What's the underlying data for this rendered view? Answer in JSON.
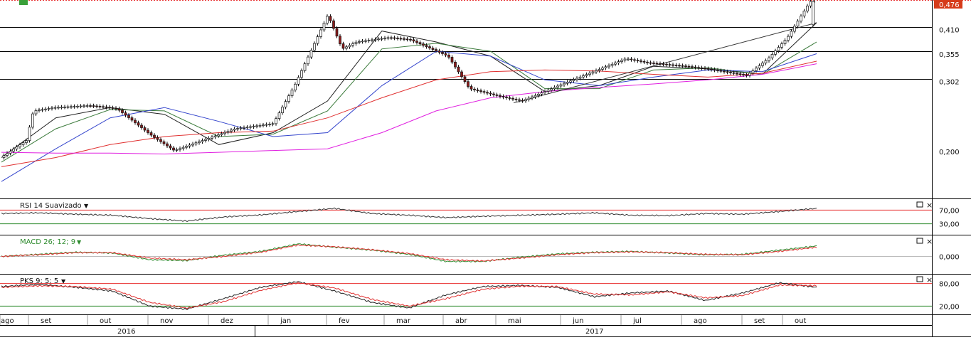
{
  "colors": {
    "up_body": "#ffffff",
    "down_body": "#8b1a1a",
    "candle_outline": "#111111",
    "grid": "#000000",
    "red_ref": "#e83030",
    "green_ref": "#2e8b2e",
    "ma_fast": "#222222",
    "ma_slow": "#3a7a3a",
    "ma_blue": "#3344cc",
    "ma_red": "#e03030",
    "ma_magenta": "#e020e0",
    "last_price_bg": "#d63b1a"
  },
  "price_panel": {
    "levels": [
      "0,476",
      "0,410",
      "0,355",
      "0,302",
      "0,200"
    ],
    "highlight_level": "0,476"
  },
  "rsi_panel": {
    "title": "RSI 14 Suavizado",
    "levels": [
      "70,00",
      "30,00"
    ]
  },
  "macd_panel": {
    "title": "MACD 26; 12; 9",
    "levels": [
      "0,000"
    ]
  },
  "pks_panel": {
    "title": "PKS 9; 5; 5",
    "levels": [
      "80,00",
      "20,00"
    ]
  },
  "panel_icons": [
    "maximize-icon",
    "close-icon"
  ],
  "time_axis": {
    "months": [
      "ago",
      "set",
      "out",
      "nov",
      "dez",
      "jan",
      "fev",
      "mar",
      "abr",
      "mai",
      "jun",
      "jul",
      "ago",
      "set",
      "out"
    ],
    "years": [
      "2016",
      "2017"
    ]
  },
  "chart_data": {
    "type": "candlestick",
    "log_scale": true,
    "ylim": [
      0.15,
      0.476
    ],
    "horizontal_lines": [
      0.41,
      0.355,
      0.302
    ],
    "x": [
      "ago",
      "set",
      "out",
      "nov",
      "dez",
      "jan",
      "fev",
      "mar",
      "abr",
      "mai",
      "jun",
      "jul",
      "ago",
      "set",
      "out"
    ],
    "close_path": [
      [
        "ago",
        0.19
      ],
      [
        "ago",
        0.21
      ],
      [
        "set",
        0.25
      ],
      [
        "set",
        0.255
      ],
      [
        "out",
        0.258
      ],
      [
        "out",
        0.256
      ],
      [
        "out",
        0.253
      ],
      [
        "nov",
        0.215
      ],
      [
        "nov",
        0.198
      ],
      [
        "dez",
        0.215
      ],
      [
        "dez",
        0.225
      ],
      [
        "jan",
        0.232
      ],
      [
        "jan",
        0.29
      ],
      [
        "fev",
        0.44
      ],
      [
        "fev",
        0.36
      ],
      [
        "fev",
        0.375
      ],
      [
        "mar",
        0.385
      ],
      [
        "mar",
        0.38
      ],
      [
        "abr",
        0.345
      ],
      [
        "abr",
        0.285
      ],
      [
        "mai",
        0.272
      ],
      [
        "mai",
        0.265
      ],
      [
        "jun",
        0.295
      ],
      [
        "jun",
        0.31
      ],
      [
        "jul",
        0.34
      ],
      [
        "jul",
        0.332
      ],
      [
        "ago",
        0.325
      ],
      [
        "ago",
        0.32
      ],
      [
        "set",
        0.308
      ],
      [
        "set",
        0.34
      ],
      [
        "out",
        0.385
      ],
      [
        "out",
        0.476
      ]
    ],
    "moving_averages": [
      {
        "color": "#222222",
        "values": [
          0.19,
          0.24,
          0.255,
          0.245,
          0.205,
          0.22,
          0.265,
          0.4,
          0.375,
          0.345,
          0.28,
          0.29,
          0.325,
          0.32,
          0.31,
          0.42
        ]
      },
      {
        "color": "#3a7a3a",
        "values": [
          0.185,
          0.225,
          0.252,
          0.25,
          0.215,
          0.218,
          0.25,
          0.36,
          0.372,
          0.355,
          0.285,
          0.285,
          0.318,
          0.322,
          0.31,
          0.375
        ]
      },
      {
        "color": "#3344cc",
        "values": [
          0.165,
          0.2,
          0.24,
          0.255,
          0.235,
          0.215,
          0.22,
          0.29,
          0.355,
          0.345,
          0.3,
          0.29,
          0.305,
          0.318,
          0.315,
          0.35
        ]
      },
      {
        "color": "#e03030",
        "values": [
          0.18,
          0.19,
          0.205,
          0.215,
          0.22,
          0.222,
          0.24,
          0.27,
          0.3,
          0.315,
          0.318,
          0.316,
          0.31,
          0.305,
          0.312,
          0.335
        ]
      },
      {
        "color": "#e020e0",
        "values": [
          0.196,
          0.195,
          0.195,
          0.194,
          0.196,
          0.198,
          0.2,
          0.22,
          0.25,
          0.27,
          0.28,
          0.287,
          0.293,
          0.3,
          0.31,
          0.33
        ]
      }
    ],
    "trendline": {
      "from": [
        "mai",
        0.262
      ],
      "to": [
        "out",
        0.42
      ]
    },
    "rsi": {
      "range": [
        0,
        100
      ],
      "levels": [
        70,
        30
      ],
      "values": [
        60,
        62,
        58,
        55,
        45,
        38,
        50,
        56,
        66,
        75,
        60,
        55,
        48,
        52,
        55,
        58,
        62,
        55,
        54,
        60,
        58,
        66,
        75
      ]
    },
    "macd": {
      "levels": [
        0
      ],
      "macd": [
        0,
        0.005,
        0.01,
        0.008,
        -0.008,
        -0.01,
        0.003,
        0.012,
        0.03,
        0.022,
        0.015,
        0.005,
        -0.012,
        -0.012,
        -0.002,
        0.006,
        0.01,
        0.012,
        0.008,
        0.004,
        0.005,
        0.015,
        0.025
      ],
      "signal": [
        0,
        0.004,
        0.009,
        0.009,
        -0.004,
        -0.008,
        0.0,
        0.01,
        0.027,
        0.023,
        0.016,
        0.007,
        -0.008,
        -0.011,
        -0.004,
        0.004,
        0.009,
        0.011,
        0.009,
        0.005,
        0.004,
        0.012,
        0.022
      ]
    },
    "pks": {
      "range": [
        0,
        100
      ],
      "levels": [
        80,
        20
      ],
      "k": [
        72,
        78,
        70,
        60,
        20,
        12,
        40,
        70,
        85,
        60,
        30,
        15,
        50,
        72,
        75,
        70,
        45,
        55,
        60,
        35,
        55,
        82,
        70
      ],
      "d": [
        70,
        74,
        72,
        65,
        30,
        15,
        32,
        62,
        82,
        68,
        38,
        20,
        40,
        65,
        73,
        72,
        52,
        50,
        58,
        42,
        48,
        76,
        74
      ]
    }
  }
}
